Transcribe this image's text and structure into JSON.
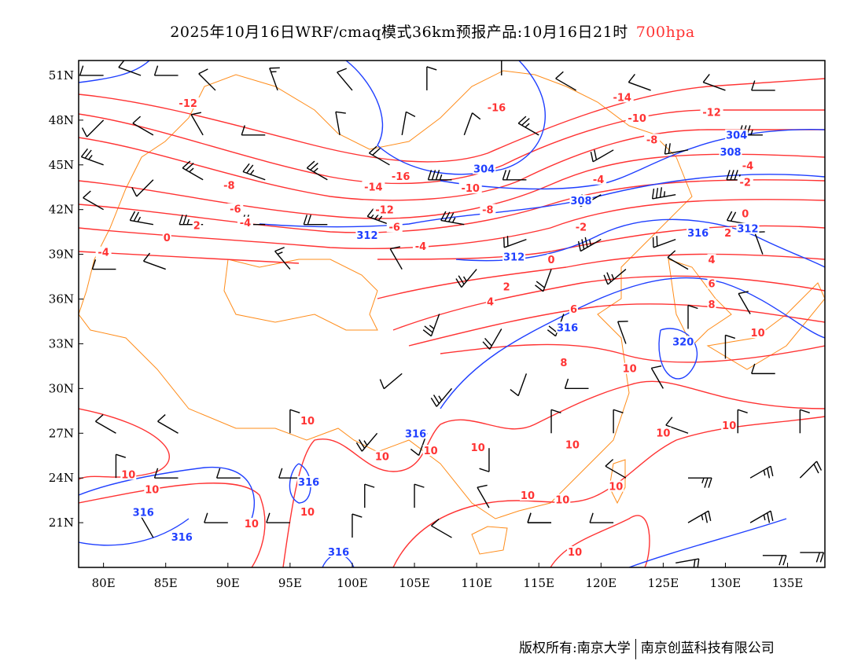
{
  "title": {
    "main": "2025年10月16日WRF/cmaq模式36km预报产品:10月16日21时",
    "level": "700hpa"
  },
  "footer": {
    "left": "版权所有:南京大学",
    "right": "南京创蓝科技有限公司"
  },
  "colors": {
    "temperature": "#ff3333",
    "height": "#1f3fff",
    "border": "#ff8c1a",
    "barb": "#000000"
  },
  "map": {
    "lon_range": [
      78,
      138
    ],
    "lat_range": [
      18,
      52
    ],
    "lon_ticks": [
      {
        "v": 80,
        "label": "80E"
      },
      {
        "v": 85,
        "label": "85E"
      },
      {
        "v": 90,
        "label": "90E"
      },
      {
        "v": 95,
        "label": "95E"
      },
      {
        "v": 100,
        "label": "100E"
      },
      {
        "v": 105,
        "label": "105E"
      },
      {
        "v": 110,
        "label": "110E"
      },
      {
        "v": 115,
        "label": "115E"
      },
      {
        "v": 120,
        "label": "120E"
      },
      {
        "v": 125,
        "label": "125E"
      },
      {
        "v": 130,
        "label": "130E"
      },
      {
        "v": 135,
        "label": "135E"
      }
    ],
    "lat_ticks": [
      {
        "v": 51,
        "label": "51N"
      },
      {
        "v": 48,
        "label": "48N"
      },
      {
        "v": 45,
        "label": "45N"
      },
      {
        "v": 42,
        "label": "42N"
      },
      {
        "v": 39,
        "label": "39N"
      },
      {
        "v": 36,
        "label": "36N"
      },
      {
        "v": 33,
        "label": "33N"
      },
      {
        "v": 30,
        "label": "30N"
      },
      {
        "v": 27,
        "label": "27N"
      },
      {
        "v": 24,
        "label": "24N"
      },
      {
        "v": 21,
        "label": "21N"
      }
    ]
  },
  "temperature_labels": [
    {
      "t": "-12",
      "lon": 86.8,
      "lat": 49.1
    },
    {
      "t": "-16",
      "lon": 111.6,
      "lat": 48.8
    },
    {
      "t": "-14",
      "lon": 121.7,
      "lat": 49.5
    },
    {
      "t": "-12",
      "lon": 128.9,
      "lat": 48.5
    },
    {
      "t": "-10",
      "lon": 122.9,
      "lat": 48.1
    },
    {
      "t": "-8",
      "lon": 124.1,
      "lat": 47.5
    },
    {
      "t": "-16",
      "lon": 103.9,
      "lat": 44.2
    },
    {
      "t": "-14",
      "lon": 101.7,
      "lat": 43.5
    },
    {
      "t": "-12",
      "lon": 102.6,
      "lat": 42.8
    },
    {
      "t": "-10",
      "lon": 109.5,
      "lat": 43.4
    },
    {
      "t": "-8",
      "lon": 110.9,
      "lat": 42.8
    },
    {
      "t": "-4",
      "lon": 119.8,
      "lat": 44.0
    },
    {
      "t": "-8",
      "lon": 90.1,
      "lat": 43.6
    },
    {
      "t": "-6",
      "lon": 90.6,
      "lat": 42.0
    },
    {
      "t": "-4",
      "lon": 91.4,
      "lat": 41.1
    },
    {
      "t": "-4",
      "lon": 131.8,
      "lat": 44.9
    },
    {
      "t": "-2",
      "lon": 131.6,
      "lat": 43.8
    },
    {
      "t": "0",
      "lon": 131.6,
      "lat": 41.7
    },
    {
      "t": "2",
      "lon": 130.2,
      "lat": 40.4
    },
    {
      "t": "2",
      "lon": 87.5,
      "lat": 40.9
    },
    {
      "t": "0",
      "lon": 85.1,
      "lat": 40.1
    },
    {
      "t": "-4",
      "lon": 80.0,
      "lat": 39.1
    },
    {
      "t": "-4",
      "lon": 105.5,
      "lat": 39.5
    },
    {
      "t": "-6",
      "lon": 103.4,
      "lat": 40.8
    },
    {
      "t": "-2",
      "lon": 118.4,
      "lat": 40.8
    },
    {
      "t": "0",
      "lon": 116.0,
      "lat": 38.6
    },
    {
      "t": "4",
      "lon": 128.9,
      "lat": 38.6
    },
    {
      "t": "6",
      "lon": 128.9,
      "lat": 37.0
    },
    {
      "t": "8",
      "lon": 128.9,
      "lat": 35.6
    },
    {
      "t": "2",
      "lon": 112.4,
      "lat": 36.8
    },
    {
      "t": "4",
      "lon": 111.1,
      "lat": 35.8
    },
    {
      "t": "6",
      "lon": 117.8,
      "lat": 35.3
    },
    {
      "t": "8",
      "lon": 117.0,
      "lat": 31.7
    },
    {
      "t": "10",
      "lon": 122.3,
      "lat": 31.3
    },
    {
      "t": "10",
      "lon": 132.6,
      "lat": 33.7
    },
    {
      "t": "10",
      "lon": 130.3,
      "lat": 27.5
    },
    {
      "t": "10",
      "lon": 125.0,
      "lat": 27.0
    },
    {
      "t": "10",
      "lon": 96.4,
      "lat": 27.8
    },
    {
      "t": "10",
      "lon": 102.4,
      "lat": 25.4
    },
    {
      "t": "10",
      "lon": 106.3,
      "lat": 25.8
    },
    {
      "t": "10",
      "lon": 110.1,
      "lat": 26.0
    },
    {
      "t": "10",
      "lon": 117.7,
      "lat": 26.2
    },
    {
      "t": "10",
      "lon": 82.0,
      "lat": 24.2
    },
    {
      "t": "10",
      "lon": 83.9,
      "lat": 23.2
    },
    {
      "t": "10",
      "lon": 96.4,
      "lat": 21.7
    },
    {
      "t": "10",
      "lon": 91.9,
      "lat": 20.9
    },
    {
      "t": "10",
      "lon": 114.1,
      "lat": 22.8
    },
    {
      "t": "10",
      "lon": 116.9,
      "lat": 22.5
    },
    {
      "t": "10",
      "lon": 121.2,
      "lat": 23.4
    },
    {
      "t": "10",
      "lon": 117.9,
      "lat": 19.0
    }
  ],
  "height_labels": [
    {
      "t": "304",
      "lon": 130.9,
      "lat": 47.8
    },
    {
      "t": "304",
      "lon": 110.6,
      "lat": 44.7
    },
    {
      "t": "308",
      "lon": 118.4,
      "lat": 43.4
    },
    {
      "t": "308",
      "lon": 131.3,
      "lat": 45.3
    },
    {
      "t": "312",
      "lon": 131.8,
      "lat": 43.0
    },
    {
      "t": "312",
      "lon": 101.2,
      "lat": 41.1
    },
    {
      "t": "312",
      "lon": 113.0,
      "lat": 38.8
    },
    {
      "t": "316",
      "lon": 127.8,
      "lat": 40.4
    },
    {
      "t": "316",
      "lon": 117.3,
      "lat": 34.9
    },
    {
      "t": "320",
      "lon": 126.6,
      "lat": 33.1
    },
    {
      "t": "316",
      "lon": 105.1,
      "lat": 26.1
    },
    {
      "t": "316",
      "lon": 96.5,
      "lat": 23.7
    },
    {
      "t": "316",
      "lon": 83.2,
      "lat": 22.5
    },
    {
      "t": "316",
      "lon": 86.3,
      "lat": 20.0
    },
    {
      "t": "316",
      "lon": 98.9,
      "lat": 19.0
    }
  ],
  "wind_barbs": [
    [
      80,
      51,
      270,
      10
    ],
    [
      83,
      51,
      290,
      10
    ],
    [
      86,
      51,
      270,
      10
    ],
    [
      89,
      50,
      315,
      10
    ],
    [
      94,
      50,
      340,
      5
    ],
    [
      100,
      50,
      320,
      10
    ],
    [
      106,
      50,
      0,
      10
    ],
    [
      112,
      51,
      0,
      10
    ],
    [
      118,
      50,
      300,
      10
    ],
    [
      124,
      50,
      290,
      10
    ],
    [
      130,
      50,
      290,
      10
    ],
    [
      134,
      50,
      270,
      10
    ],
    [
      80,
      48,
      225,
      10
    ],
    [
      84,
      47,
      300,
      10
    ],
    [
      88,
      47,
      330,
      10
    ],
    [
      93,
      47,
      270,
      10
    ],
    [
      99,
      47,
      350,
      10
    ],
    [
      104,
      47,
      10,
      10
    ],
    [
      109,
      47,
      20,
      10
    ],
    [
      115,
      47,
      300,
      15
    ],
    [
      121,
      46,
      240,
      20
    ],
    [
      127,
      46,
      260,
      20
    ],
    [
      133,
      47,
      270,
      25
    ],
    [
      80,
      45,
      290,
      15
    ],
    [
      84,
      44,
      225,
      10
    ],
    [
      88,
      44,
      300,
      15
    ],
    [
      93,
      44,
      290,
      15
    ],
    [
      98,
      44,
      300,
      15
    ],
    [
      103,
      45,
      300,
      20
    ],
    [
      108,
      44,
      270,
      25
    ],
    [
      114,
      44,
      270,
      20
    ],
    [
      120,
      43,
      240,
      20
    ],
    [
      126,
      43,
      260,
      25
    ],
    [
      132,
      44,
      270,
      25
    ],
    [
      80,
      42,
      300,
      10
    ],
    [
      84,
      41,
      280,
      15
    ],
    [
      88,
      41,
      270,
      15
    ],
    [
      93,
      41,
      270,
      20
    ],
    [
      98,
      41,
      270,
      20
    ],
    [
      103,
      41,
      290,
      25
    ],
    [
      109,
      41,
      280,
      25
    ],
    [
      114,
      40,
      250,
      20
    ],
    [
      120,
      40,
      240,
      25
    ],
    [
      126,
      40,
      250,
      20
    ],
    [
      132,
      41,
      280,
      20
    ],
    [
      81,
      38,
      270,
      10
    ],
    [
      85,
      38,
      290,
      10
    ],
    [
      95,
      38,
      320,
      5
    ],
    [
      104,
      38,
      330,
      10
    ],
    [
      110,
      38,
      220,
      15
    ],
    [
      116,
      38,
      200,
      20
    ],
    [
      122,
      38,
      230,
      15
    ],
    [
      127,
      38,
      300,
      10
    ],
    [
      133,
      39,
      340,
      10
    ],
    [
      107,
      35,
      200,
      15
    ],
    [
      112,
      34,
      210,
      20
    ],
    [
      117,
      35,
      200,
      20
    ],
    [
      122,
      33,
      340,
      10
    ],
    [
      127,
      34,
      0,
      10
    ],
    [
      132,
      35,
      330,
      10
    ],
    [
      104,
      31,
      230,
      10
    ],
    [
      108,
      30,
      220,
      15
    ],
    [
      114,
      31,
      200,
      10
    ],
    [
      119,
      30,
      270,
      10
    ],
    [
      125,
      30,
      330,
      10
    ],
    [
      130,
      32,
      0,
      10
    ],
    [
      134,
      31,
      270,
      10
    ],
    [
      81,
      27,
      300,
      10
    ],
    [
      86,
      27,
      300,
      10
    ],
    [
      95,
      27,
      0,
      10
    ],
    [
      102,
      27,
      220,
      15
    ],
    [
      106,
      27,
      200,
      10
    ],
    [
      111,
      26,
      180,
      10
    ],
    [
      116,
      27,
      0,
      10
    ],
    [
      121,
      27,
      0,
      10
    ],
    [
      127,
      27,
      290,
      10
    ],
    [
      131,
      27,
      0,
      10
    ],
    [
      136,
      27,
      0,
      10
    ],
    [
      81,
      24,
      0,
      10
    ],
    [
      86,
      24,
      270,
      10
    ],
    [
      91,
      24,
      270,
      10
    ],
    [
      96,
      24,
      270,
      10
    ],
    [
      101,
      22,
      0,
      10
    ],
    [
      105,
      22,
      0,
      10
    ],
    [
      111,
      22,
      330,
      10
    ],
    [
      116,
      21,
      270,
      10
    ],
    [
      122,
      24,
      300,
      10
    ],
    [
      127,
      24,
      90,
      15
    ],
    [
      132,
      24,
      60,
      15
    ],
    [
      136,
      24,
      45,
      20
    ],
    [
      84,
      20,
      330,
      10
    ],
    [
      90,
      21,
      270,
      10
    ],
    [
      95,
      21,
      270,
      10
    ],
    [
      100,
      20,
      0,
      10
    ],
    [
      108,
      20,
      300,
      10
    ],
    [
      116,
      21,
      270,
      10
    ],
    [
      121,
      21,
      270,
      10
    ],
    [
      127,
      21,
      60,
      15
    ],
    [
      132,
      21,
      60,
      15
    ],
    [
      136,
      19,
      90,
      20
    ],
    [
      126,
      18.3,
      80,
      20
    ],
    [
      133,
      18.8,
      90,
      20
    ]
  ]
}
